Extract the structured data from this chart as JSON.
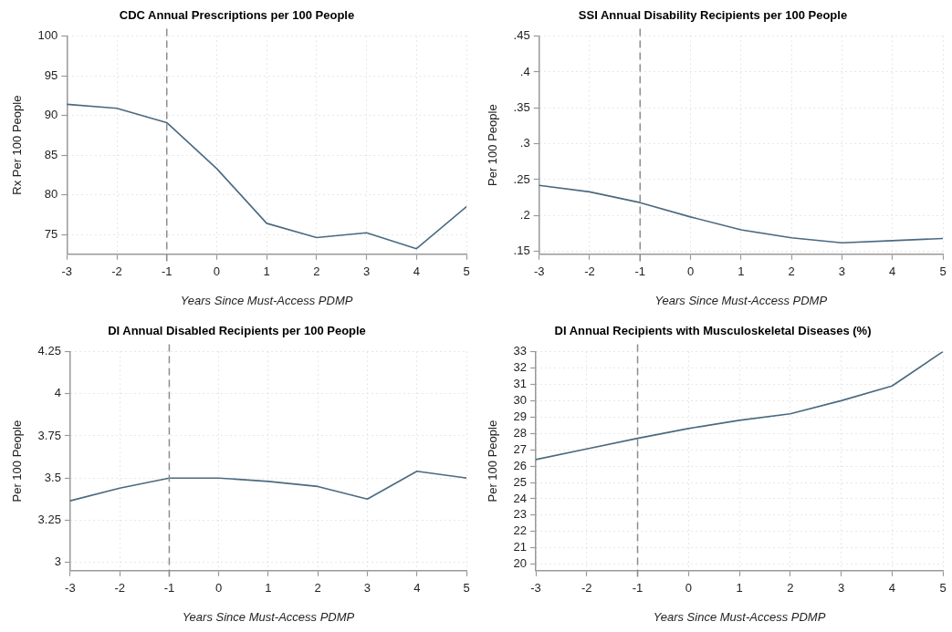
{
  "chart_data": [
    {
      "type": "line",
      "title": "CDC Annual Prescriptions per 100 People",
      "xlabel": "Years Since Must-Access PDMP",
      "ylabel": "Rx Per 100 People",
      "x": [
        -3,
        -2,
        -1,
        0,
        1,
        2,
        3,
        4,
        5
      ],
      "series": [
        {
          "color": "#4a6a80",
          "values": [
            91.4,
            90.9,
            89.1,
            83.3,
            76.4,
            74.6,
            75.2,
            73.2,
            78.5
          ]
        }
      ],
      "xlim": [
        -3,
        5
      ],
      "xticks": [
        -3,
        -2,
        -1,
        0,
        1,
        2,
        3,
        4,
        5
      ],
      "ylim": [
        72.5,
        100
      ],
      "yticks": [
        75,
        80,
        85,
        90,
        95,
        100
      ],
      "grid": true,
      "legend": false,
      "marker": "none",
      "line_style": "solid",
      "ref_lines": [
        {
          "axis": "x",
          "value": -1,
          "color": "#8c8c8c",
          "line_style": "dashed"
        }
      ]
    },
    {
      "type": "line",
      "title": "SSI Annual Disability Recipients per 100 People",
      "xlabel": "Years Since Must-Access PDMP",
      "ylabel": "Per 100 People",
      "x": [
        -3,
        -2,
        -1,
        0,
        1,
        2,
        3,
        4,
        5
      ],
      "series": [
        {
          "color": "#4a6a80",
          "values": [
            0.242,
            0.233,
            0.218,
            0.198,
            0.18,
            0.169,
            0.162,
            0.165,
            0.168
          ]
        }
      ],
      "xlim": [
        -3,
        5
      ],
      "xticks": [
        -3,
        -2,
        -1,
        0,
        1,
        2,
        3,
        4,
        5
      ],
      "ylim": [
        0.146,
        0.45
      ],
      "yticks": [
        {
          "value": 0.15,
          "label": ".15"
        },
        {
          "value": 0.2,
          "label": ".2"
        },
        {
          "value": 0.25,
          "label": ".25"
        },
        {
          "value": 0.3,
          "label": ".3"
        },
        {
          "value": 0.35,
          "label": ".35"
        },
        {
          "value": 0.4,
          "label": ".4"
        },
        {
          "value": 0.45,
          "label": ".45"
        }
      ],
      "grid": true,
      "legend": false,
      "marker": "none",
      "line_style": "solid",
      "ref_lines": [
        {
          "axis": "x",
          "value": -1,
          "color": "#8c8c8c",
          "line_style": "dashed"
        }
      ]
    },
    {
      "type": "line",
      "title": "DI Annual Disabled Recipients per 100 People",
      "xlabel": "Years Since Must-Access PDMP",
      "ylabel": "Per 100 People",
      "x": [
        -3,
        -2,
        -1,
        0,
        1,
        2,
        3,
        4,
        5
      ],
      "series": [
        {
          "color": "#4a6a80",
          "values": [
            3.365,
            3.44,
            3.5,
            3.5,
            3.48,
            3.45,
            3.375,
            3.54,
            3.5
          ]
        }
      ],
      "xlim": [
        -3,
        5
      ],
      "xticks": [
        -3,
        -2,
        -1,
        0,
        1,
        2,
        3,
        4,
        5
      ],
      "ylim": [
        2.95,
        4.25
      ],
      "yticks": [
        3,
        3.25,
        3.5,
        3.75,
        4,
        4.25
      ],
      "grid": true,
      "legend": false,
      "marker": "none",
      "line_style": "solid",
      "ref_lines": [
        {
          "axis": "x",
          "value": -1,
          "color": "#8c8c8c",
          "line_style": "dashed"
        }
      ]
    },
    {
      "type": "line",
      "title": "DI Annual Recipients with Musculoskeletal Diseases (%)",
      "xlabel": "Years Since Must-Access PDMP",
      "ylabel": "Per 100 People",
      "x": [
        -3,
        -2,
        -1,
        0,
        1,
        2,
        3,
        4,
        5
      ],
      "series": [
        {
          "color": "#4a6a80",
          "values": [
            26.4,
            27.05,
            27.7,
            28.3,
            28.8,
            29.2,
            30.0,
            30.9,
            33.0
          ]
        }
      ],
      "xlim": [
        -3,
        5
      ],
      "xticks": [
        -3,
        -2,
        -1,
        0,
        1,
        2,
        3,
        4,
        5
      ],
      "ylim": [
        19.6,
        33
      ],
      "yticks": [
        20,
        21,
        22,
        23,
        24,
        25,
        26,
        27,
        28,
        29,
        30,
        31,
        32,
        33
      ],
      "grid": true,
      "legend": false,
      "marker": "none",
      "line_style": "solid",
      "ref_lines": [
        {
          "axis": "x",
          "value": -1,
          "color": "#8c8c8c",
          "line_style": "dashed"
        }
      ]
    }
  ]
}
